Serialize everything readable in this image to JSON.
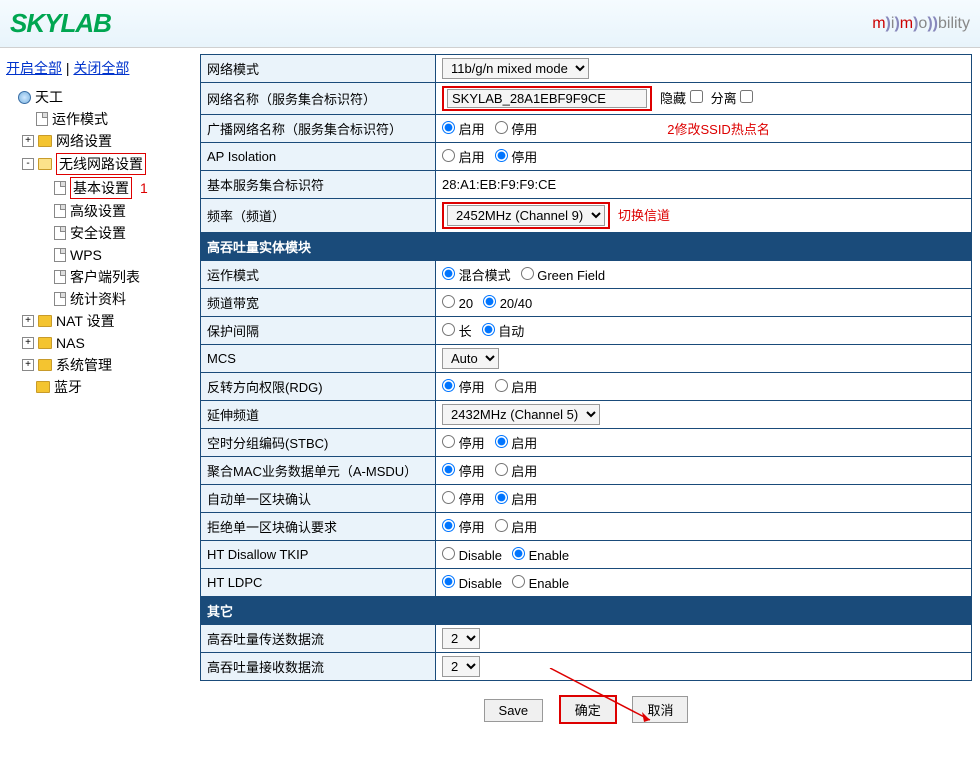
{
  "header": {
    "logo": "SKYLAB",
    "brand": "m i m o bility"
  },
  "sidebar": {
    "open_all": "开启全部",
    "close_all": "关闭全部",
    "root": "天工",
    "items": [
      {
        "label": "运作模式",
        "type": "page"
      },
      {
        "label": "网络设置",
        "type": "folder",
        "exp": "+"
      },
      {
        "label": "无线网路设置",
        "type": "folder",
        "exp": "-",
        "hl": true,
        "children": [
          {
            "label": "基本设置",
            "hl": true,
            "anno": "1"
          },
          {
            "label": "高级设置"
          },
          {
            "label": "安全设置"
          },
          {
            "label": "WPS"
          },
          {
            "label": "客户端列表"
          },
          {
            "label": "统计资料"
          }
        ]
      },
      {
        "label": "NAT 设置",
        "type": "folder",
        "exp": "+"
      },
      {
        "label": "NAS",
        "type": "folder",
        "exp": "+"
      },
      {
        "label": "系统管理",
        "type": "folder",
        "exp": "+"
      },
      {
        "label": "蓝牙",
        "type": "folder"
      }
    ]
  },
  "form": {
    "rows1": [
      {
        "k": "网络模式",
        "t": "select",
        "v": "11b/g/n mixed mode"
      },
      {
        "k": "网络名称（服务集合标识符）",
        "t": "ssid",
        "v": "SKYLAB_28A1EBF9F9CE",
        "cb1": "隐藏",
        "cb2": "分离",
        "anno": "2修改SSID热点名",
        "hl": true
      },
      {
        "k": "广播网络名称（服务集合标识符）",
        "t": "radio",
        "o1": "启用",
        "o2": "停用",
        "sel": 1
      },
      {
        "k": "AP Isolation",
        "t": "radio",
        "o1": "启用",
        "o2": "停用",
        "sel": 2
      },
      {
        "k": "基本服务集合标识符",
        "t": "text",
        "v": "28:A1:EB:F9:F9:CE"
      },
      {
        "k": "频率（频道）",
        "t": "select",
        "v": "2452MHz (Channel 9)",
        "hl": true,
        "anno": "切换信道"
      }
    ],
    "sec1": "高吞吐量实体模块",
    "rows2": [
      {
        "k": "运作模式",
        "t": "radio",
        "o1": "混合模式",
        "o2": "Green Field",
        "sel": 1
      },
      {
        "k": "频道带宽",
        "t": "radio",
        "o1": "20",
        "o2": "20/40",
        "sel": 2
      },
      {
        "k": "保护间隔",
        "t": "radio",
        "o1": "长",
        "o2": "自动",
        "sel": 2
      },
      {
        "k": "MCS",
        "t": "select",
        "v": "Auto"
      },
      {
        "k": "反转方向权限(RDG)",
        "t": "radio",
        "o1": "停用",
        "o2": "启用",
        "sel": 1
      },
      {
        "k": "延伸频道",
        "t": "select",
        "v": "2432MHz (Channel 5)"
      },
      {
        "k": "空时分组编码(STBC)",
        "t": "radio",
        "o1": "停用",
        "o2": "启用",
        "sel": 2
      },
      {
        "k": "聚合MAC业务数据单元（A-MSDU）",
        "t": "radio",
        "o1": "停用",
        "o2": "启用",
        "sel": 1
      },
      {
        "k": "自动单一区块确认",
        "t": "radio",
        "o1": "停用",
        "o2": "启用",
        "sel": 2
      },
      {
        "k": "拒绝单一区块确认要求",
        "t": "radio",
        "o1": "停用",
        "o2": "启用",
        "sel": 1
      },
      {
        "k": "HT Disallow TKIP",
        "t": "radio",
        "o1": "Disable",
        "o2": "Enable",
        "sel": 2
      },
      {
        "k": "HT LDPC",
        "t": "radio",
        "o1": "Disable",
        "o2": "Enable",
        "sel": 1
      }
    ],
    "sec2": "其它",
    "rows3": [
      {
        "k": "高吞吐量传送数据流",
        "t": "select",
        "v": "2"
      },
      {
        "k": "高吞吐量接收数据流",
        "t": "select",
        "v": "2"
      }
    ]
  },
  "buttons": {
    "save": "Save",
    "ok": "确定",
    "cancel": "取消"
  }
}
